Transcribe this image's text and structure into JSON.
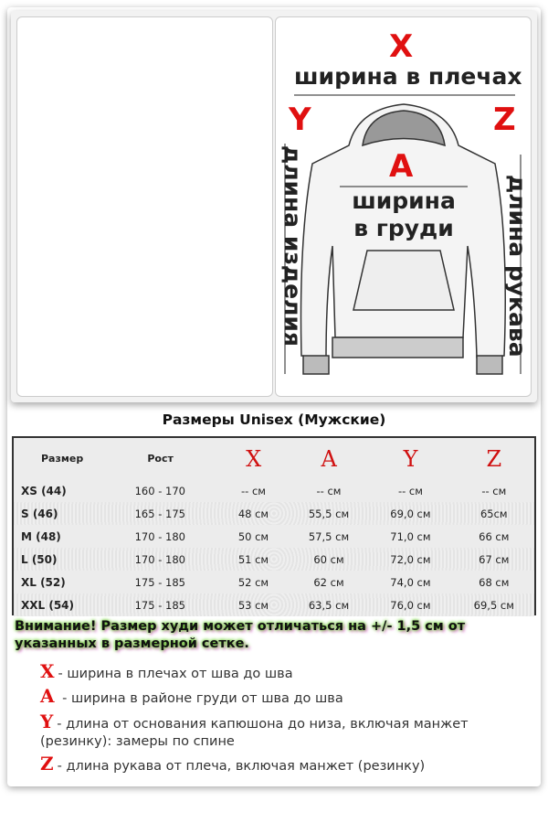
{
  "diagram": {
    "x_letter": "X",
    "x_label": "ширина в плечах",
    "y_letter": "Y",
    "z_letter": "Z",
    "a_letter": "A",
    "a_label_1": "ширина",
    "a_label_2": "в груди",
    "length_label": "длина изделия",
    "sleeve_label": "длина рукава",
    "accent": "#e01010"
  },
  "title": "Размеры Unisex (Мужские)",
  "table": {
    "headers": [
      "Размер",
      "Рост",
      "X",
      "A",
      "Y",
      "Z"
    ],
    "rows": [
      [
        "XS (44)",
        "160 - 170",
        "-- см",
        "-- см",
        "-- см",
        "-- см"
      ],
      [
        "S (46)",
        "165 - 175",
        "48 см",
        "55,5 см",
        "69,0 см",
        "65см"
      ],
      [
        "M (48)",
        "170 - 180",
        "50 см",
        "57,5 см",
        "71,0 см",
        "66 см"
      ],
      [
        "L (50)",
        "170 - 180",
        "51 см",
        "60 см",
        "72,0 см",
        "67 см"
      ],
      [
        "XL (52)",
        "175 - 185",
        "52 см",
        "62 см",
        "74,0 см",
        "68 см"
      ],
      [
        "XXL (54)",
        "175 - 185",
        "53 см",
        "63,5 см",
        "76,0 см",
        "69,5 см"
      ]
    ]
  },
  "warning": "Внимание! Размер худи может отличаться на +/- 1,5 см от указанных в размерной сетке.",
  "legend": [
    {
      "letter": "X",
      "text": "- ширина в плечах от шва до шва"
    },
    {
      "letter": "A",
      "text": " - ширина в районе груди от шва до шва"
    },
    {
      "letter": "Y",
      "text": "- длина от основания капюшона до низа, включая манжет",
      "cont": "(резинку): замеры по спине"
    },
    {
      "letter": "Z",
      "text": "- длина рукава от плеча, включая манжет (резинку)"
    }
  ]
}
